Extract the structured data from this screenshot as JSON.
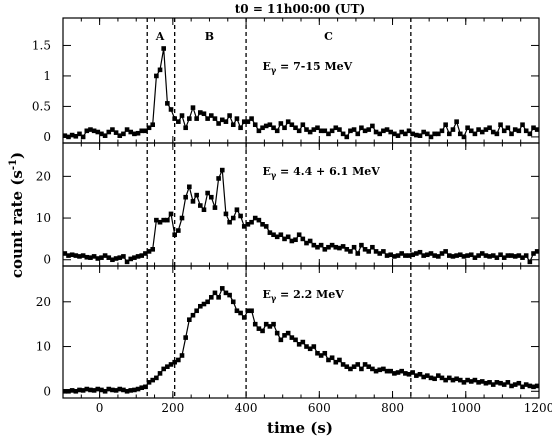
{
  "chart_data": {
    "type": "line",
    "title": "t0 = 11h00:00 (UT)",
    "xlabel": "time (s)",
    "ylabel": "count rate (s",
    "ylabel_sup": "-1",
    "ylabel_close": ")",
    "xlim": [
      -100,
      1200
    ],
    "xticks": [
      0,
      200,
      400,
      600,
      800,
      1000,
      1200
    ],
    "phase_boundaries": [
      130,
      205,
      400,
      850
    ],
    "phase_labels": [
      {
        "text": "A",
        "x": 165
      },
      {
        "text": "B",
        "x": 300
      },
      {
        "text": "C",
        "x": 625
      }
    ],
    "panels": [
      {
        "label_main": "E",
        "label_sub": "γ",
        "label_rest": " = 7-15 MeV",
        "ylim": [
          -0.1,
          1.95
        ],
        "yticks": [
          0,
          0.5,
          1,
          1.5
        ],
        "ytick_labels": [
          "0",
          "0.5",
          "1",
          "1.5"
        ],
        "x": [
          -95,
          -85,
          -75,
          -65,
          -55,
          -45,
          -35,
          -25,
          -15,
          -5,
          5,
          15,
          25,
          35,
          45,
          55,
          65,
          75,
          85,
          95,
          105,
          115,
          125,
          135,
          145,
          155,
          165,
          175,
          185,
          195,
          205,
          215,
          225,
          235,
          245,
          255,
          265,
          275,
          285,
          295,
          305,
          315,
          325,
          335,
          345,
          355,
          365,
          375,
          385,
          395,
          405,
          415,
          425,
          435,
          445,
          455,
          465,
          475,
          485,
          495,
          505,
          515,
          525,
          535,
          545,
          555,
          565,
          575,
          585,
          595,
          605,
          615,
          625,
          635,
          645,
          655,
          665,
          675,
          685,
          695,
          705,
          715,
          725,
          735,
          745,
          755,
          765,
          775,
          785,
          795,
          805,
          815,
          825,
          835,
          845,
          855,
          865,
          875,
          885,
          895,
          905,
          915,
          925,
          935,
          945,
          955,
          965,
          975,
          985,
          995,
          1005,
          1015,
          1025,
          1035,
          1045,
          1055,
          1065,
          1075,
          1085,
          1095,
          1105,
          1115,
          1125,
          1135,
          1145,
          1155,
          1165,
          1175,
          1185,
          1195
        ],
        "values": [
          0.02,
          0.0,
          0.03,
          0.01,
          0.05,
          0.0,
          0.1,
          0.12,
          0.1,
          0.08,
          0.05,
          0.02,
          0.08,
          0.12,
          0.07,
          0.02,
          0.05,
          0.12,
          0.08,
          0.05,
          0.06,
          0.1,
          0.1,
          0.15,
          0.2,
          1.0,
          1.1,
          1.45,
          0.55,
          0.45,
          0.3,
          0.25,
          0.35,
          0.15,
          0.3,
          0.48,
          0.3,
          0.4,
          0.38,
          0.3,
          0.35,
          0.3,
          0.22,
          0.28,
          0.25,
          0.35,
          0.2,
          0.3,
          0.15,
          0.25,
          0.25,
          0.3,
          0.2,
          0.1,
          0.15,
          0.18,
          0.2,
          0.15,
          0.1,
          0.22,
          0.15,
          0.25,
          0.2,
          0.15,
          0.1,
          0.2,
          0.12,
          0.08,
          0.12,
          0.15,
          0.1,
          0.1,
          0.05,
          0.1,
          0.15,
          0.12,
          0.05,
          0.0,
          0.1,
          0.12,
          0.05,
          0.15,
          0.1,
          0.12,
          0.18,
          0.08,
          0.05,
          0.1,
          0.12,
          0.08,
          0.05,
          0.02,
          0.08,
          0.05,
          0.1,
          0.05,
          0.03,
          0.02,
          0.08,
          0.05,
          0.0,
          0.05,
          0.05,
          0.1,
          0.2,
          0.05,
          0.12,
          0.25,
          0.05,
          0.0,
          0.15,
          0.1,
          0.05,
          0.12,
          0.08,
          0.12,
          0.15,
          0.08,
          0.05,
          0.2,
          0.1,
          0.15,
          0.05,
          0.12,
          0.1,
          0.2,
          0.1,
          0.05,
          0.15,
          0.12
        ]
      },
      {
        "label_main": "E",
        "label_sub": "γ",
        "label_rest": " = 4.4 + 6.1 MeV",
        "ylim": [
          -1.5,
          28
        ],
        "yticks": [
          0,
          10,
          20
        ],
        "ytick_labels": [
          "0",
          "10",
          "20"
        ],
        "x": [
          -95,
          -85,
          -75,
          -65,
          -55,
          -45,
          -35,
          -25,
          -15,
          -5,
          5,
          15,
          25,
          35,
          45,
          55,
          65,
          75,
          85,
          95,
          105,
          115,
          125,
          135,
          145,
          155,
          165,
          175,
          185,
          195,
          205,
          215,
          225,
          235,
          245,
          255,
          265,
          275,
          285,
          295,
          305,
          315,
          325,
          335,
          345,
          355,
          365,
          375,
          385,
          395,
          405,
          415,
          425,
          435,
          445,
          455,
          465,
          475,
          485,
          495,
          505,
          515,
          525,
          535,
          545,
          555,
          565,
          575,
          585,
          595,
          605,
          615,
          625,
          635,
          645,
          655,
          665,
          675,
          685,
          695,
          705,
          715,
          725,
          735,
          745,
          755,
          765,
          775,
          785,
          795,
          805,
          815,
          825,
          835,
          845,
          855,
          865,
          875,
          885,
          895,
          905,
          915,
          925,
          935,
          945,
          955,
          965,
          975,
          985,
          995,
          1005,
          1015,
          1025,
          1035,
          1045,
          1055,
          1065,
          1075,
          1085,
          1095,
          1105,
          1115,
          1125,
          1135,
          1145,
          1155,
          1165,
          1175,
          1185,
          1195
        ],
        "values": [
          1.5,
          1.0,
          1.2,
          1.0,
          0.8,
          1.0,
          0.6,
          0.5,
          0.8,
          0.3,
          0.5,
          1.0,
          0.5,
          0.0,
          0.3,
          0.5,
          0.8,
          -0.5,
          0.2,
          0.5,
          0.8,
          1.0,
          1.5,
          2.0,
          2.5,
          9.5,
          9.0,
          9.5,
          9.5,
          11.0,
          6.0,
          7.0,
          10.0,
          15.0,
          17.5,
          14.0,
          15.5,
          13.0,
          12.0,
          16.0,
          15.0,
          12.5,
          19.5,
          21.5,
          11.0,
          9.0,
          10.0,
          12.0,
          10.5,
          8.0,
          8.5,
          9.0,
          10.0,
          9.5,
          8.5,
          8.0,
          6.5,
          6.0,
          5.5,
          6.0,
          5.0,
          5.5,
          4.5,
          4.8,
          6.0,
          5.0,
          4.0,
          4.5,
          3.5,
          3.0,
          3.5,
          2.5,
          3.0,
          3.5,
          3.0,
          2.8,
          3.2,
          2.5,
          2.0,
          3.0,
          1.5,
          3.5,
          2.5,
          2.0,
          3.0,
          2.0,
          1.5,
          2.0,
          1.0,
          1.2,
          0.8,
          1.0,
          1.5,
          1.0,
          1.0,
          1.2,
          1.5,
          1.8,
          1.0,
          1.2,
          1.5,
          1.0,
          0.8,
          1.5,
          2.0,
          1.0,
          0.8,
          1.0,
          1.2,
          0.8,
          1.0,
          1.2,
          0.5,
          1.0,
          1.5,
          1.0,
          0.8,
          1.0,
          0.5,
          1.2,
          0.5,
          1.0,
          1.0,
          0.8,
          1.0,
          0.5,
          1.0,
          -0.5,
          1.5,
          2.0
        ]
      },
      {
        "label_main": "E",
        "label_sub": "γ",
        "label_rest": " = 2.2 MeV",
        "ylim": [
          -1.5,
          28
        ],
        "yticks": [
          0,
          10,
          20
        ],
        "ytick_labels": [
          "0",
          "10",
          "20"
        ],
        "x": [
          -95,
          -85,
          -75,
          -65,
          -55,
          -45,
          -35,
          -25,
          -15,
          -5,
          5,
          15,
          25,
          35,
          45,
          55,
          65,
          75,
          85,
          95,
          105,
          115,
          125,
          135,
          145,
          155,
          165,
          175,
          185,
          195,
          205,
          215,
          225,
          235,
          245,
          255,
          265,
          275,
          285,
          295,
          305,
          315,
          325,
          335,
          345,
          355,
          365,
          375,
          385,
          395,
          405,
          415,
          425,
          435,
          445,
          455,
          465,
          475,
          485,
          495,
          505,
          515,
          525,
          535,
          545,
          555,
          565,
          575,
          585,
          595,
          605,
          615,
          625,
          635,
          645,
          655,
          665,
          675,
          685,
          695,
          705,
          715,
          725,
          735,
          745,
          755,
          765,
          775,
          785,
          795,
          805,
          815,
          825,
          835,
          845,
          855,
          865,
          875,
          885,
          895,
          905,
          915,
          925,
          935,
          945,
          955,
          965,
          975,
          985,
          995,
          1005,
          1015,
          1025,
          1035,
          1045,
          1055,
          1065,
          1075,
          1085,
          1095,
          1105,
          1115,
          1125,
          1135,
          1145,
          1155,
          1165,
          1175,
          1185,
          1195
        ],
        "values": [
          0.0,
          0.0,
          0.2,
          0.0,
          0.3,
          0.2,
          0.5,
          0.3,
          0.2,
          0.5,
          0.3,
          0.0,
          0.5,
          0.3,
          0.2,
          0.5,
          0.3,
          0.0,
          0.2,
          0.3,
          0.5,
          0.8,
          1.0,
          2.0,
          2.5,
          3.0,
          4.0,
          5.0,
          5.5,
          6.0,
          6.5,
          7.0,
          8.0,
          12.0,
          16.0,
          17.0,
          18.0,
          19.0,
          19.5,
          20.0,
          21.0,
          22.0,
          21.0,
          23.0,
          22.0,
          21.5,
          20.0,
          18.0,
          17.5,
          16.5,
          18.0,
          18.0,
          15.0,
          14.0,
          13.5,
          15.0,
          14.5,
          15.0,
          13.0,
          11.5,
          12.5,
          13.0,
          12.0,
          11.5,
          10.5,
          11.0,
          10.0,
          9.5,
          10.0,
          8.5,
          8.0,
          8.5,
          7.0,
          7.5,
          6.5,
          7.0,
          6.0,
          5.5,
          5.0,
          5.5,
          6.0,
          5.0,
          6.0,
          5.5,
          5.0,
          4.5,
          4.8,
          5.0,
          4.5,
          4.5,
          4.0,
          4.2,
          4.5,
          4.0,
          3.8,
          4.2,
          3.5,
          3.8,
          3.2,
          3.5,
          3.0,
          2.8,
          3.5,
          3.0,
          2.5,
          3.0,
          2.5,
          2.8,
          2.5,
          2.0,
          2.5,
          2.2,
          2.5,
          2.0,
          2.2,
          1.8,
          2.0,
          1.5,
          2.0,
          1.8,
          1.5,
          2.0,
          1.2,
          1.5,
          1.8,
          1.0,
          1.5,
          1.2,
          1.0,
          1.2
        ]
      }
    ]
  }
}
